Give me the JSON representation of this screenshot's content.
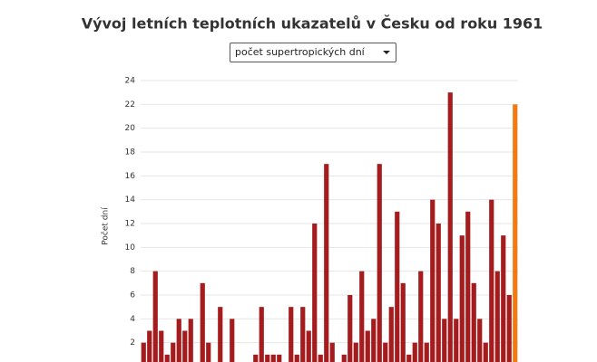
{
  "chart_data": {
    "type": "bar",
    "title": "Vývoj letních teplotních ukazatelů v Česku od roku 1961",
    "selector": "počet supertropických dní",
    "ylabel": "Počet dní",
    "values": [
      2,
      3,
      8,
      3,
      1,
      2,
      4,
      3,
      4,
      0,
      7,
      2,
      0,
      5,
      0,
      4,
      0,
      0,
      0,
      1,
      5,
      1,
      1,
      1,
      0,
      5,
      1,
      5,
      3,
      12,
      1,
      17,
      2,
      0,
      1,
      6,
      2,
      8,
      3,
      4,
      17,
      2,
      5,
      13,
      7,
      1,
      2,
      8,
      2,
      14,
      12,
      4,
      23,
      4,
      11,
      13,
      7,
      4,
      2,
      14,
      8,
      11,
      6,
      22
    ],
    "color": "#a51c1f",
    "last_color": "#f07a14",
    "ylim": [
      0,
      24
    ],
    "yticks": [
      2,
      4,
      6,
      8,
      10,
      12,
      14,
      16,
      18,
      20,
      22,
      24
    ],
    "grid": true
  }
}
